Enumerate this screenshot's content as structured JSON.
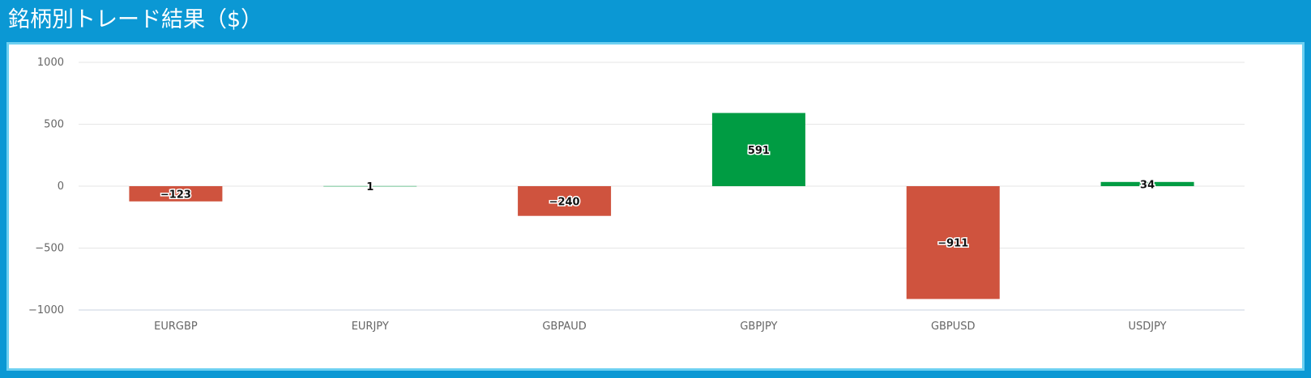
{
  "title": "銘柄別トレード結果（$）",
  "colors": {
    "header_bg": "#0b98d4",
    "panel_border": "#6dd0f1",
    "positive": "#009c43",
    "negative": "#cf533e",
    "grid": "#e6e6e6"
  },
  "chart_data": {
    "type": "bar",
    "title": "銘柄別トレード結果（$）",
    "xlabel": "",
    "ylabel": "",
    "ylim": [
      -1000,
      1000
    ],
    "yticks": [
      1000,
      500,
      0,
      -500,
      -1000
    ],
    "ytick_labels": [
      "1000",
      "500",
      "0",
      "−500",
      "−1000"
    ],
    "grid": true,
    "categories": [
      "EURGBP",
      "EURJPY",
      "GBPAUD",
      "GBPJPY",
      "GBPUSD",
      "USDJPY"
    ],
    "values": [
      -123,
      1,
      -240,
      591,
      -911,
      34
    ],
    "data_labels": [
      "−123",
      "1",
      "−240",
      "591",
      "−911",
      "34"
    ]
  }
}
